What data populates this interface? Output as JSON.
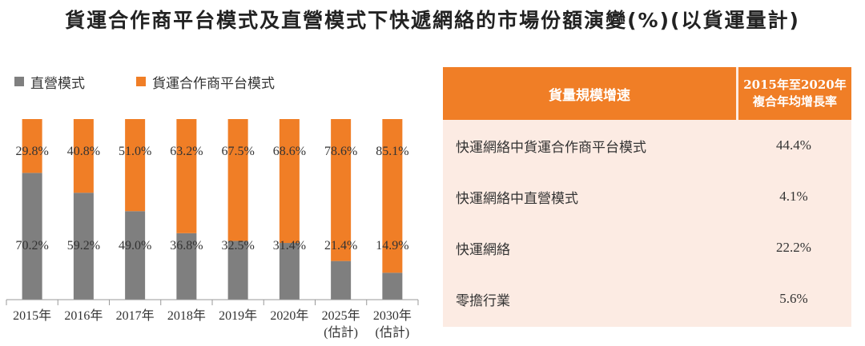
{
  "title": "貨運合作商平台模式及直營模式下快遞網絡的市場份額演變(%)(以貨運量計)",
  "colors": {
    "direct": "#7f7f7f",
    "platform": "#f07e26",
    "header_bg": "#f07e26",
    "table_bg": "#fcebe3"
  },
  "chart_data": {
    "type": "bar",
    "stacked": true,
    "percent_stacked": true,
    "categories": [
      "2015年",
      "2016年",
      "2017年",
      "2018年",
      "2019年",
      "2020年",
      "2025年",
      "2030年"
    ],
    "category_notes": [
      "",
      "",
      "",
      "",
      "",
      "",
      "(估計)",
      "(估計)"
    ],
    "series": [
      {
        "name": "直營模式",
        "values": [
          70.2,
          59.2,
          49.0,
          36.8,
          32.5,
          31.4,
          21.4,
          14.9
        ],
        "labels": [
          "70.2%",
          "59.2%",
          "49.0%",
          "36.8%",
          "32.5%",
          "31.4%",
          "21.4%",
          "14.9%"
        ]
      },
      {
        "name": "貨運合作商平台模式",
        "values": [
          29.8,
          40.8,
          51.0,
          63.2,
          67.5,
          68.6,
          78.6,
          85.1
        ],
        "labels": [
          "29.8%",
          "40.8%",
          "51.0%",
          "63.2%",
          "67.5%",
          "68.6%",
          "78.6%",
          "85.1%"
        ]
      }
    ],
    "ylim": [
      0,
      100
    ],
    "legend_position": "top-left",
    "grid": false
  },
  "table": {
    "header_left": "貨量規模增速",
    "header_right_line1": "2015年至2020年",
    "header_right_line2": "複合年均增長率",
    "rows": [
      {
        "label": "快運網絡中貨運合作商平台模式",
        "value": "44.4%"
      },
      {
        "label": "快運網絡中直營模式",
        "value": "4.1%"
      },
      {
        "label": "快運網絡",
        "value": "22.2%"
      },
      {
        "label": "零擔行業",
        "value": "5.6%"
      }
    ]
  }
}
